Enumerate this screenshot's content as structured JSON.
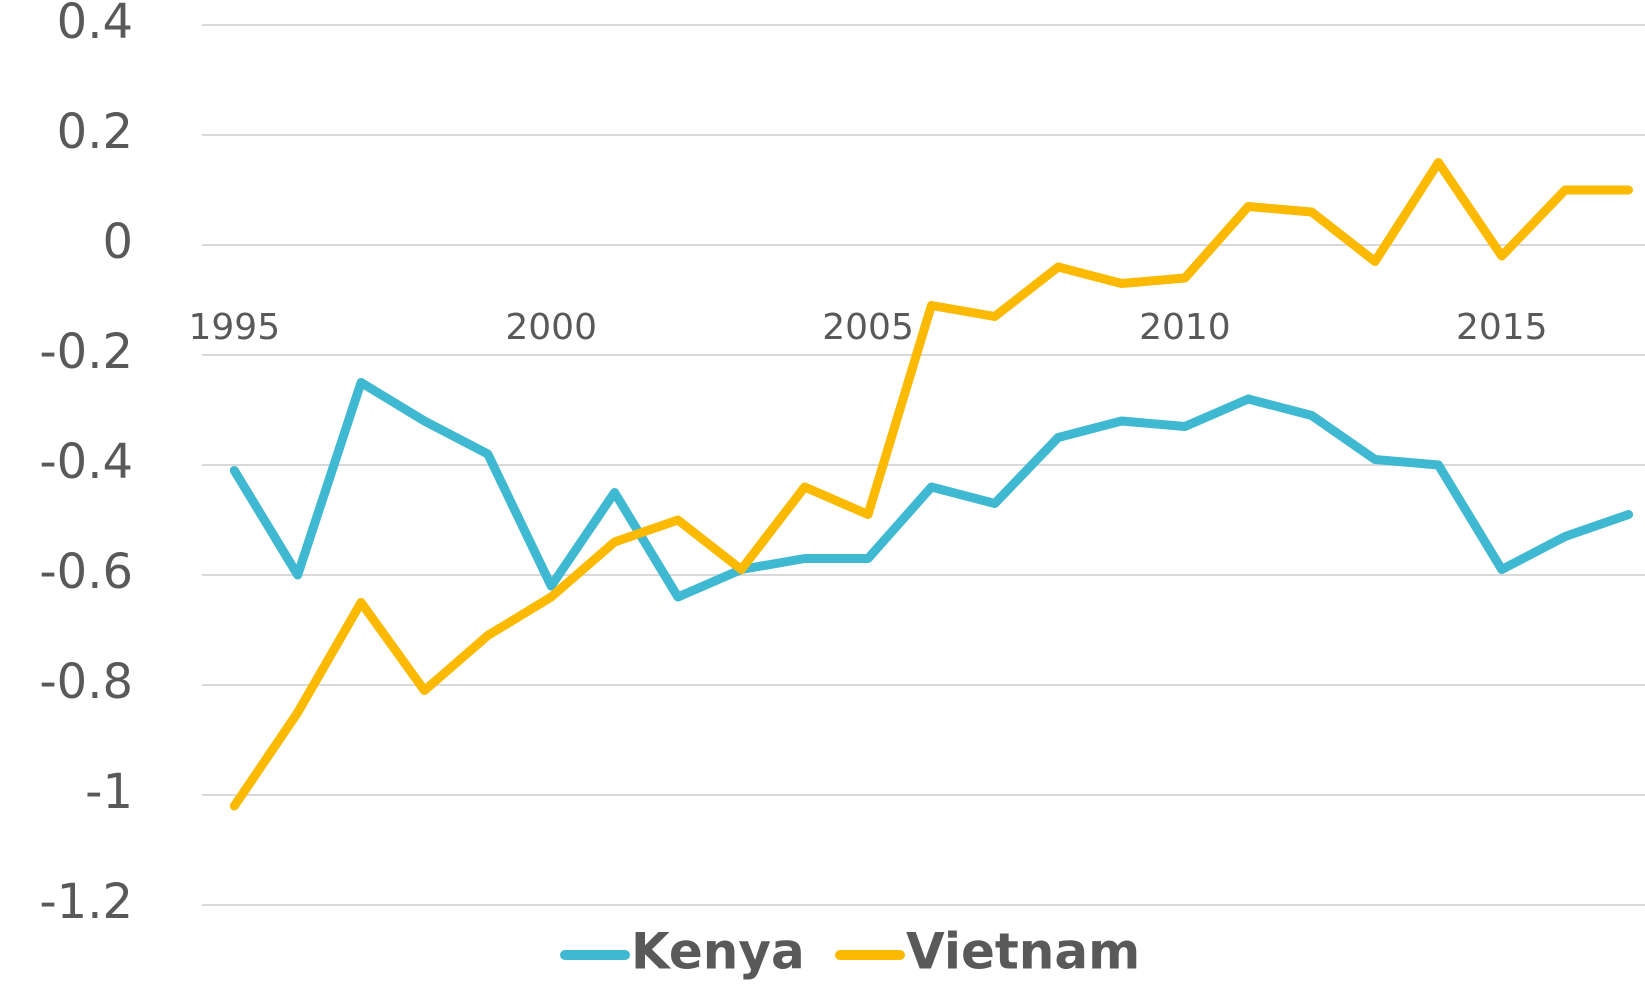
{
  "chart_data": {
    "type": "line",
    "x": [
      1995,
      1996,
      1997,
      1998,
      1999,
      2000,
      2001,
      2002,
      2003,
      2004,
      2005,
      2006,
      2007,
      2008,
      2009,
      2010,
      2011,
      2012,
      2013,
      2014,
      2015,
      2016,
      2017
    ],
    "series": [
      {
        "name": "Kenya",
        "color": "#3fb8d1",
        "values": [
          -0.41,
          -0.6,
          -0.25,
          -0.32,
          -0.38,
          -0.62,
          -0.45,
          -0.64,
          -0.59,
          -0.57,
          -0.57,
          -0.44,
          -0.47,
          -0.35,
          -0.32,
          -0.33,
          -0.28,
          -0.31,
          -0.39,
          -0.4,
          -0.59,
          -0.53,
          -0.49
        ]
      },
      {
        "name": "Vietnam",
        "color": "#fbb900",
        "values": [
          -1.02,
          -0.85,
          -0.65,
          -0.81,
          -0.71,
          -0.64,
          -0.54,
          -0.5,
          -0.59,
          -0.44,
          -0.49,
          -0.11,
          -0.13,
          -0.04,
          -0.07,
          -0.06,
          0.07,
          0.06,
          -0.03,
          0.15,
          -0.02,
          0.1,
          0.1
        ]
      }
    ],
    "xlim": [
      1994.49,
      2017.26
    ],
    "xticks": [
      1995,
      2000,
      2005,
      2010,
      2015
    ],
    "ylim": [
      -1.2,
      0.4
    ],
    "yticks": [
      0.4,
      0.2,
      0,
      -0.2,
      -0.4,
      -0.6,
      -0.8,
      -1,
      -1.2
    ],
    "grid": true,
    "legend": "bottom"
  }
}
